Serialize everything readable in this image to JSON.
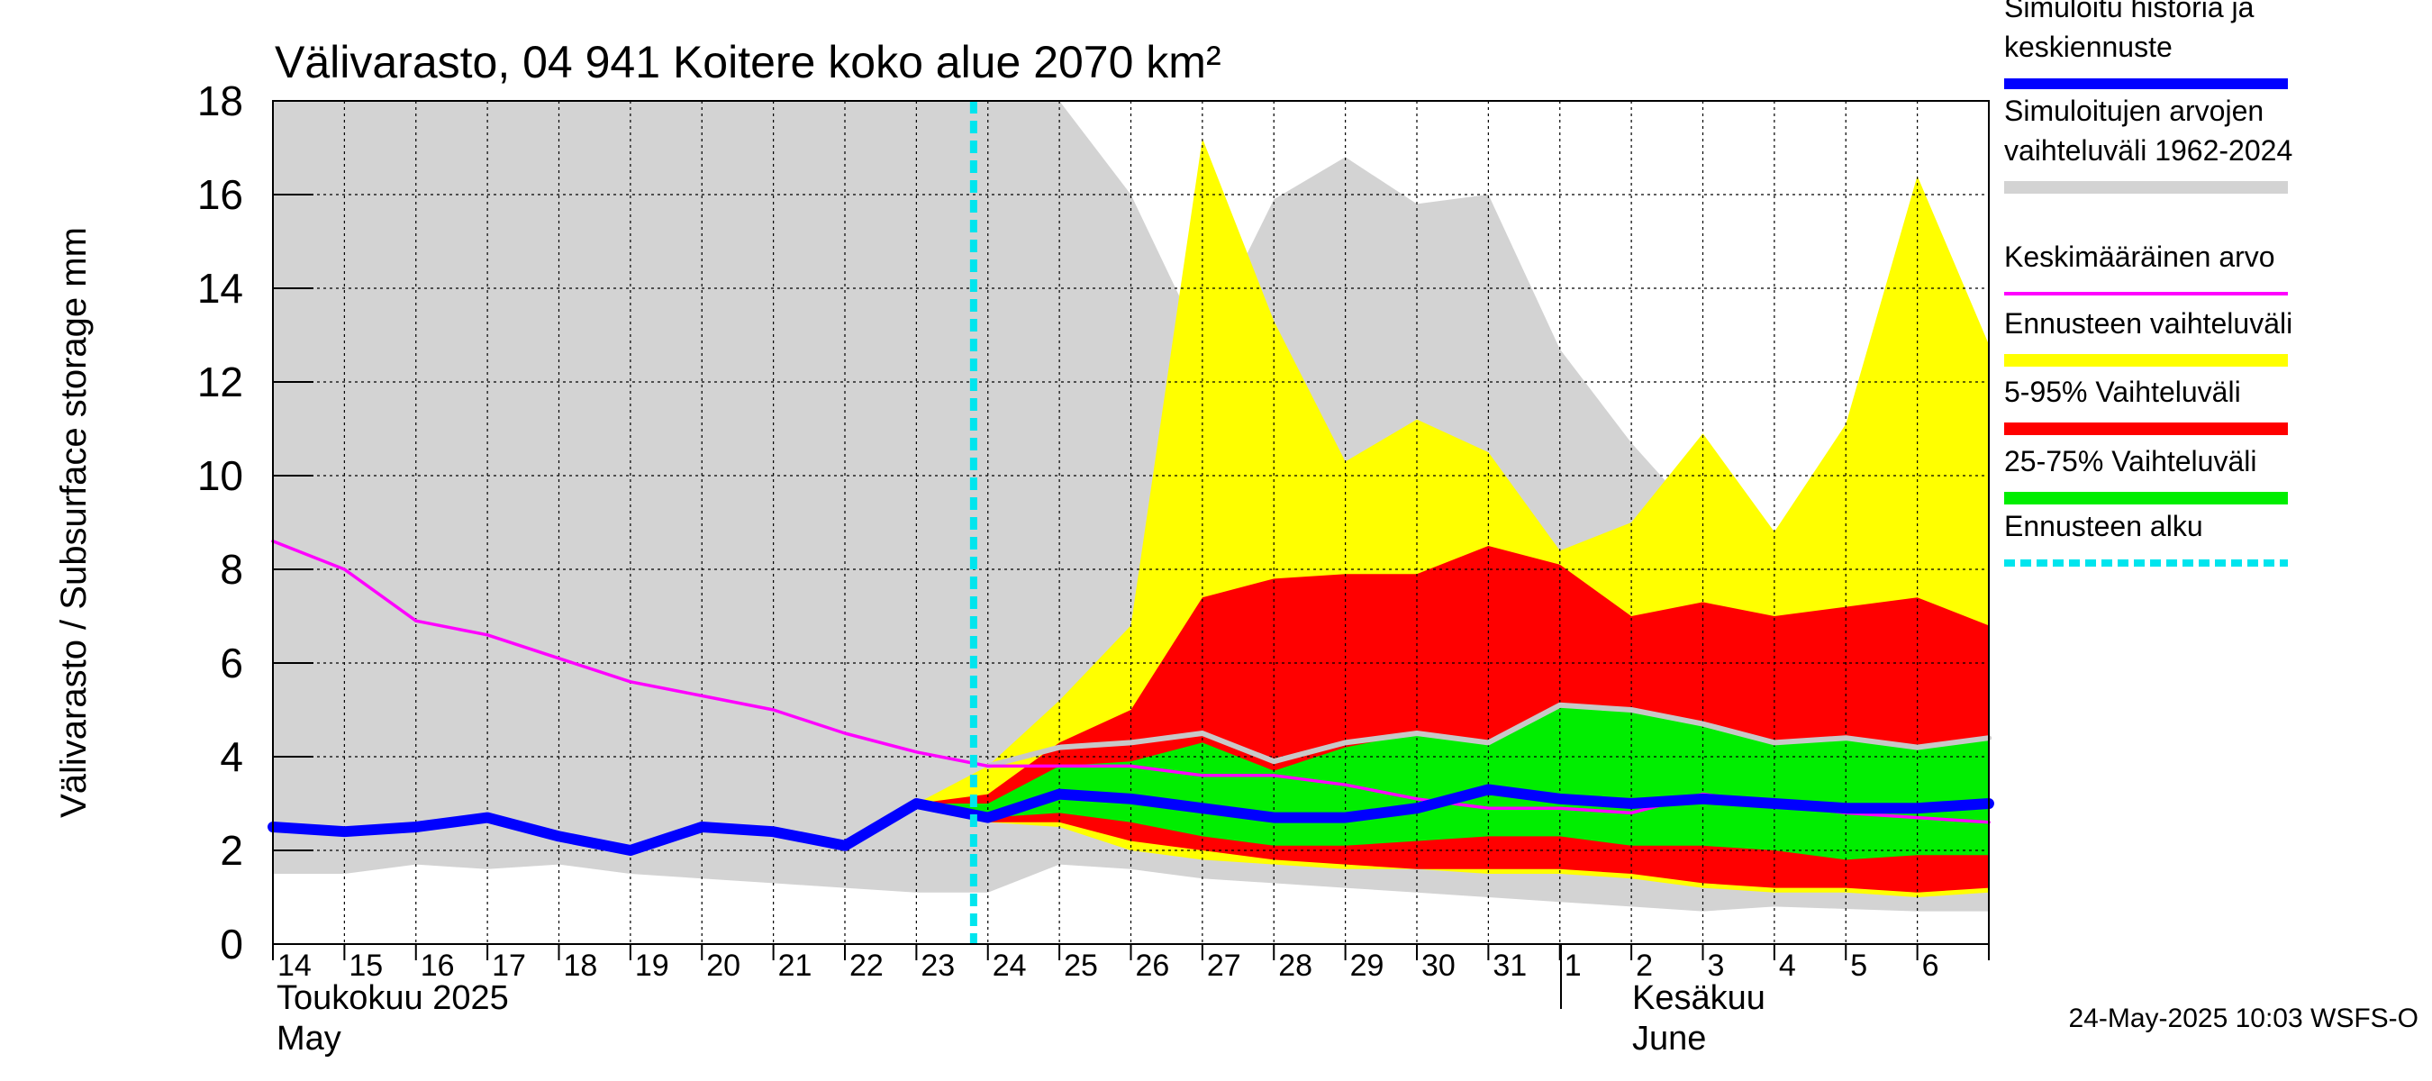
{
  "chart_data": {
    "type": "area",
    "title": "Välivarasto, 04 941 Koitere koko alue 2070 km²",
    "ylabel": "Välivarasto / Subsurface storage  mm",
    "ylim": [
      0,
      18
    ],
    "yticks": [
      "0",
      "2",
      "4",
      "6",
      "8",
      "10",
      "12",
      "14",
      "16",
      "18"
    ],
    "x_start": 14,
    "xticks": [
      "14",
      "15",
      "16",
      "17",
      "18",
      "19",
      "20",
      "21",
      "22",
      "23",
      "24",
      "25",
      "26",
      "27",
      "28",
      "29",
      "30",
      "31",
      "1",
      "2",
      "3",
      "4",
      "5",
      "6"
    ],
    "month_labels": {
      "may_fi": "Toukokuu  2025",
      "may_en": "May",
      "june_fi": "Kesäkuu",
      "june_en": "June"
    },
    "forecast_start": 23.8,
    "grid": true,
    "legend_placement": "right",
    "footer": "24-May-2025 10:03 WSFS-O",
    "colors": {
      "history": "#0000ff",
      "range": "#d3d3d3",
      "mean": "#ff00ff",
      "ens_range": "#ffff00",
      "p5_95": "#ff0000",
      "p25_75": "#00ee00",
      "forecast_start": "#00e5ee",
      "median_light": "#c8c8c8"
    },
    "legend": [
      {
        "lines": [
          "Simuloitu historia ja",
          "keskiennuste"
        ],
        "key": "history"
      },
      {
        "lines": [
          "Simuloitujen arvojen",
          "vaihteluväli 1962-2024"
        ],
        "key": "range"
      },
      {
        "lines": [
          "Keskimääräinen arvo"
        ],
        "key": "mean"
      },
      {
        "lines": [
          "Ennusteen vaihteluväli"
        ],
        "key": "ens_range"
      },
      {
        "lines": [
          "5-95% Vaihteluväli"
        ],
        "key": "p5_95"
      },
      {
        "lines": [
          "25-75% Vaihteluväli"
        ],
        "key": "p25_75"
      },
      {
        "lines": [
          "Ennusteen alku"
        ],
        "key": "forecast_start"
      }
    ],
    "series": {
      "range_upper": {
        "x": [
          14,
          24,
          25,
          26,
          27,
          28,
          29,
          30,
          31,
          32,
          33,
          34,
          35,
          36,
          37,
          38
        ],
        "y": [
          18,
          18,
          18,
          16,
          12.8,
          15.9,
          16.8,
          15.8,
          16,
          12.7,
          10.7,
          9,
          8.7,
          8,
          7.3,
          7.2
        ]
      },
      "range_lower": {
        "x": [
          14,
          15,
          16,
          17,
          18,
          19,
          20,
          21,
          22,
          23,
          24,
          25,
          26,
          27,
          28,
          29,
          30,
          31,
          32,
          33,
          34,
          35,
          36,
          37,
          38
        ],
        "y": [
          1.5,
          1.5,
          1.7,
          1.6,
          1.7,
          1.5,
          1.4,
          1.3,
          1.2,
          1.1,
          1.1,
          1.7,
          1.6,
          1.4,
          1.3,
          1.2,
          1.1,
          1.0,
          0.9,
          0.8,
          0.7,
          0.8,
          0.75,
          0.7,
          0.7
        ]
      },
      "ens_upper": {
        "x": [
          23,
          24,
          25,
          26,
          27,
          28,
          29,
          30,
          31,
          32,
          33,
          34,
          35,
          36,
          37,
          38
        ],
        "y": [
          3.0,
          3.8,
          5.2,
          6.8,
          17.2,
          13.3,
          10.3,
          11.2,
          10.5,
          8.4,
          9.0,
          10.9,
          8.8,
          11.1,
          16.4,
          12.8
        ]
      },
      "ens_lower": {
        "x": [
          23,
          24,
          25,
          26,
          27,
          28,
          29,
          30,
          31,
          32,
          33,
          34,
          35,
          36,
          37,
          38
        ],
        "y": [
          3.0,
          2.6,
          2.5,
          2.0,
          1.8,
          1.7,
          1.6,
          1.6,
          1.5,
          1.5,
          1.4,
          1.2,
          1.1,
          1.1,
          1.0,
          1.1
        ]
      },
      "p95": {
        "x": [
          23,
          24,
          25,
          26,
          27,
          28,
          29,
          30,
          31,
          32,
          33,
          34,
          35,
          36,
          37,
          38
        ],
        "y": [
          3.0,
          3.2,
          4.3,
          5.0,
          7.4,
          7.8,
          7.9,
          7.9,
          8.5,
          8.1,
          7.0,
          7.3,
          7.0,
          7.2,
          7.4,
          6.8
        ]
      },
      "p5": {
        "x": [
          23,
          24,
          25,
          26,
          27,
          28,
          29,
          30,
          31,
          32,
          33,
          34,
          35,
          36,
          37,
          38
        ],
        "y": [
          3.0,
          2.6,
          2.6,
          2.2,
          2.0,
          1.8,
          1.7,
          1.6,
          1.6,
          1.6,
          1.5,
          1.3,
          1.2,
          1.2,
          1.1,
          1.2
        ]
      },
      "p75": {
        "x": [
          23,
          24,
          25,
          26,
          27,
          28,
          29,
          30,
          31,
          32,
          33,
          34,
          35,
          36,
          37,
          38
        ],
        "y": [
          3.0,
          3.0,
          3.8,
          3.9,
          4.3,
          3.7,
          4.2,
          4.5,
          4.3,
          5.1,
          5.0,
          4.7,
          4.3,
          4.4,
          4.2,
          4.4
        ]
      },
      "p25": {
        "x": [
          23,
          24,
          25,
          26,
          27,
          28,
          29,
          30,
          31,
          32,
          33,
          34,
          35,
          36,
          37,
          38
        ],
        "y": [
          3.0,
          2.7,
          2.8,
          2.6,
          2.3,
          2.1,
          2.1,
          2.2,
          2.3,
          2.3,
          2.1,
          2.1,
          2.0,
          1.8,
          1.9,
          1.9
        ]
      },
      "mean": {
        "x": [
          14,
          15,
          16,
          17,
          18,
          19,
          20,
          21,
          22,
          23,
          24,
          25,
          26,
          27,
          28,
          29,
          30,
          31,
          32,
          33,
          34,
          35,
          36,
          37,
          38
        ],
        "y": [
          8.6,
          8.0,
          6.9,
          6.6,
          6.1,
          5.6,
          5.3,
          5.0,
          4.5,
          4.1,
          3.8,
          3.8,
          3.8,
          3.6,
          3.6,
          3.4,
          3.1,
          2.9,
          2.9,
          2.8,
          3.2,
          3.0,
          2.8,
          2.7,
          2.6
        ]
      },
      "median_light": {
        "x": [
          24,
          25,
          26,
          27,
          28,
          29,
          30,
          31,
          32,
          33,
          34,
          35,
          36,
          37,
          38
        ],
        "y": [
          3.8,
          4.2,
          4.3,
          4.5,
          3.9,
          4.3,
          4.5,
          4.3,
          5.1,
          5.0,
          4.7,
          4.3,
          4.4,
          4.2,
          4.4
        ]
      },
      "history": {
        "x": [
          14,
          15,
          16,
          17,
          18,
          19,
          20,
          21,
          22,
          23,
          24,
          25,
          26,
          27,
          28,
          29,
          30,
          31,
          32,
          33,
          34,
          35,
          36,
          37,
          38
        ],
        "y": [
          2.5,
          2.4,
          2.5,
          2.7,
          2.3,
          2.0,
          2.5,
          2.4,
          2.1,
          3.0,
          2.7,
          3.2,
          3.1,
          2.9,
          2.7,
          2.7,
          2.9,
          3.3,
          3.1,
          3.0,
          3.1,
          3.0,
          2.9,
          2.9,
          3.0
        ]
      }
    }
  }
}
